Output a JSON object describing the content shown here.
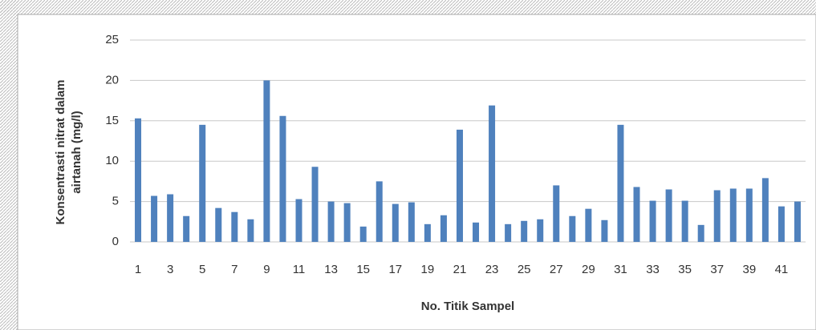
{
  "chart_data": {
    "type": "bar",
    "y_label": [
      "Konsentrasti nitrat dalam",
      "airtanah (mg/l)"
    ],
    "x_label": "No. Titik Sampel",
    "categories": [
      "1",
      null,
      "3",
      null,
      "5",
      null,
      "7",
      null,
      "9",
      null,
      "11",
      null,
      "13",
      null,
      "15",
      null,
      "17",
      null,
      "19",
      null,
      "21",
      null,
      "23",
      null,
      "25",
      null,
      "27",
      null,
      "29",
      null,
      "31",
      null,
      "33",
      null,
      "35",
      null,
      "37",
      null,
      "39",
      null,
      "41",
      null
    ],
    "values": [
      15.3,
      5.7,
      5.9,
      3.2,
      14.5,
      4.2,
      3.7,
      2.8,
      20,
      15.6,
      5.3,
      9.3,
      5.0,
      4.8,
      1.9,
      7.5,
      4.7,
      4.9,
      2.2,
      3.3,
      13.9,
      2.4,
      16.9,
      2.2,
      2.6,
      2.8,
      7.0,
      3.2,
      4.1,
      2.7,
      14.5,
      6.8,
      5.1,
      6.5,
      5.1,
      2.1,
      6.4,
      6.6,
      6.6,
      7.9,
      4.4,
      5.0
    ],
    "color": "#4f81bd",
    "ylim": [
      0,
      25
    ],
    "yticks": [
      0,
      5,
      10,
      15,
      20,
      25
    ],
    "grid": true
  }
}
